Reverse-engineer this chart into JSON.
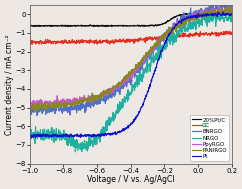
{
  "title": "",
  "xlabel": "Voltage / V vs. Ag/AgCl",
  "ylabel": "Current density / mA cm⁻²",
  "xlim": [
    -1.0,
    0.2
  ],
  "ylim": [
    -8.0,
    0.5
  ],
  "xticks": [
    -1.0,
    -0.8,
    -0.6,
    -0.4,
    -0.2,
    0.0,
    0.2
  ],
  "yticks": [
    0,
    -1,
    -2,
    -3,
    -4,
    -5,
    -6,
    -7,
    -8
  ],
  "background": "#ede8e3",
  "legend_labels": [
    "20%Pt/C",
    "GC",
    "BNRGO",
    "NRGO",
    "PpyRGO",
    "PANIRGO",
    "Pt"
  ],
  "legend_colors": [
    "#111111",
    "#e03020",
    "#5070c8",
    "#20b0a0",
    "#cc55cc",
    "#888820",
    "#1010cc"
  ],
  "noise_seed": 42,
  "noise_amps": [
    0.015,
    0.055,
    0.13,
    0.18,
    0.09,
    0.09,
    0.04
  ]
}
